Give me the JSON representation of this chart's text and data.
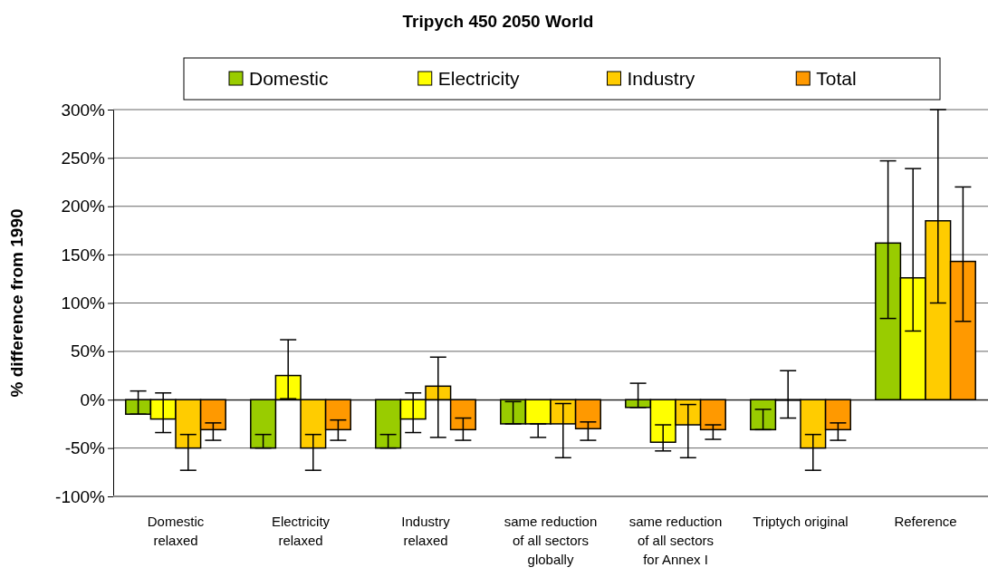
{
  "chart_data": {
    "type": "bar",
    "title": "Tripych 450 2050 World",
    "ylabel": "% difference from 1990",
    "categories": [
      "Domestic\nrelaxed",
      "Electricity\nrelaxed",
      "Industry\nrelaxed",
      "same reduction\nof all sectors\nglobally",
      "same reduction\nof all sectors\nfor Annex I",
      "Triptych original",
      "Reference"
    ],
    "series": [
      {
        "name": "Domestic",
        "color": "#99cc00",
        "values": [
          -15,
          -50,
          -50,
          -25,
          -8,
          -31,
          162
        ],
        "errors": [
          [
            -15,
            9
          ],
          [
            -50,
            -36
          ],
          [
            -50,
            -36
          ],
          [
            -25,
            -2
          ],
          [
            -8,
            17
          ],
          [
            -31,
            -10
          ],
          [
            84,
            247
          ]
        ]
      },
      {
        "name": "Electricity",
        "color": "#ffff00",
        "values": [
          -20,
          25,
          -20,
          -25,
          -44,
          0,
          126
        ],
        "errors": [
          [
            -34,
            7
          ],
          [
            1,
            62
          ],
          [
            -34,
            7
          ],
          [
            -39,
            -25
          ],
          [
            -53,
            -26
          ],
          [
            -19,
            30
          ],
          [
            71,
            239
          ]
        ]
      },
      {
        "name": "Industry",
        "color": "#ffcc00",
        "values": [
          -50,
          -50,
          14,
          -25,
          -26,
          -50,
          185
        ],
        "errors": [
          [
            -73,
            -36
          ],
          [
            -73,
            -36
          ],
          [
            -39,
            44
          ],
          [
            -60,
            -4
          ],
          [
            -60,
            -5
          ],
          [
            -73,
            -36
          ],
          [
            100,
            300
          ]
        ]
      },
      {
        "name": "Total",
        "color": "#ff9900",
        "values": [
          -31,
          -31,
          -31,
          -30,
          -31,
          -31,
          143
        ],
        "errors": [
          [
            -42,
            -24
          ],
          [
            -42,
            -21
          ],
          [
            -42,
            -19
          ],
          [
            -42,
            -23
          ],
          [
            -41,
            -26
          ],
          [
            -42,
            -24
          ],
          [
            81,
            220
          ]
        ]
      }
    ],
    "ylim": [
      -100,
      300
    ],
    "yticks": [
      {
        "value": -100,
        "label": "-100%"
      },
      {
        "value": -50,
        "label": "-50%"
      },
      {
        "value": 0,
        "label": "0%"
      },
      {
        "value": 50,
        "label": "50%"
      },
      {
        "value": 100,
        "label": "100%"
      },
      {
        "value": 150,
        "label": "150%"
      },
      {
        "value": 200,
        "label": "200%"
      },
      {
        "value": 250,
        "label": "250%"
      },
      {
        "value": 300,
        "label": "300%"
      }
    ],
    "grid": "y",
    "legend": "top"
  }
}
